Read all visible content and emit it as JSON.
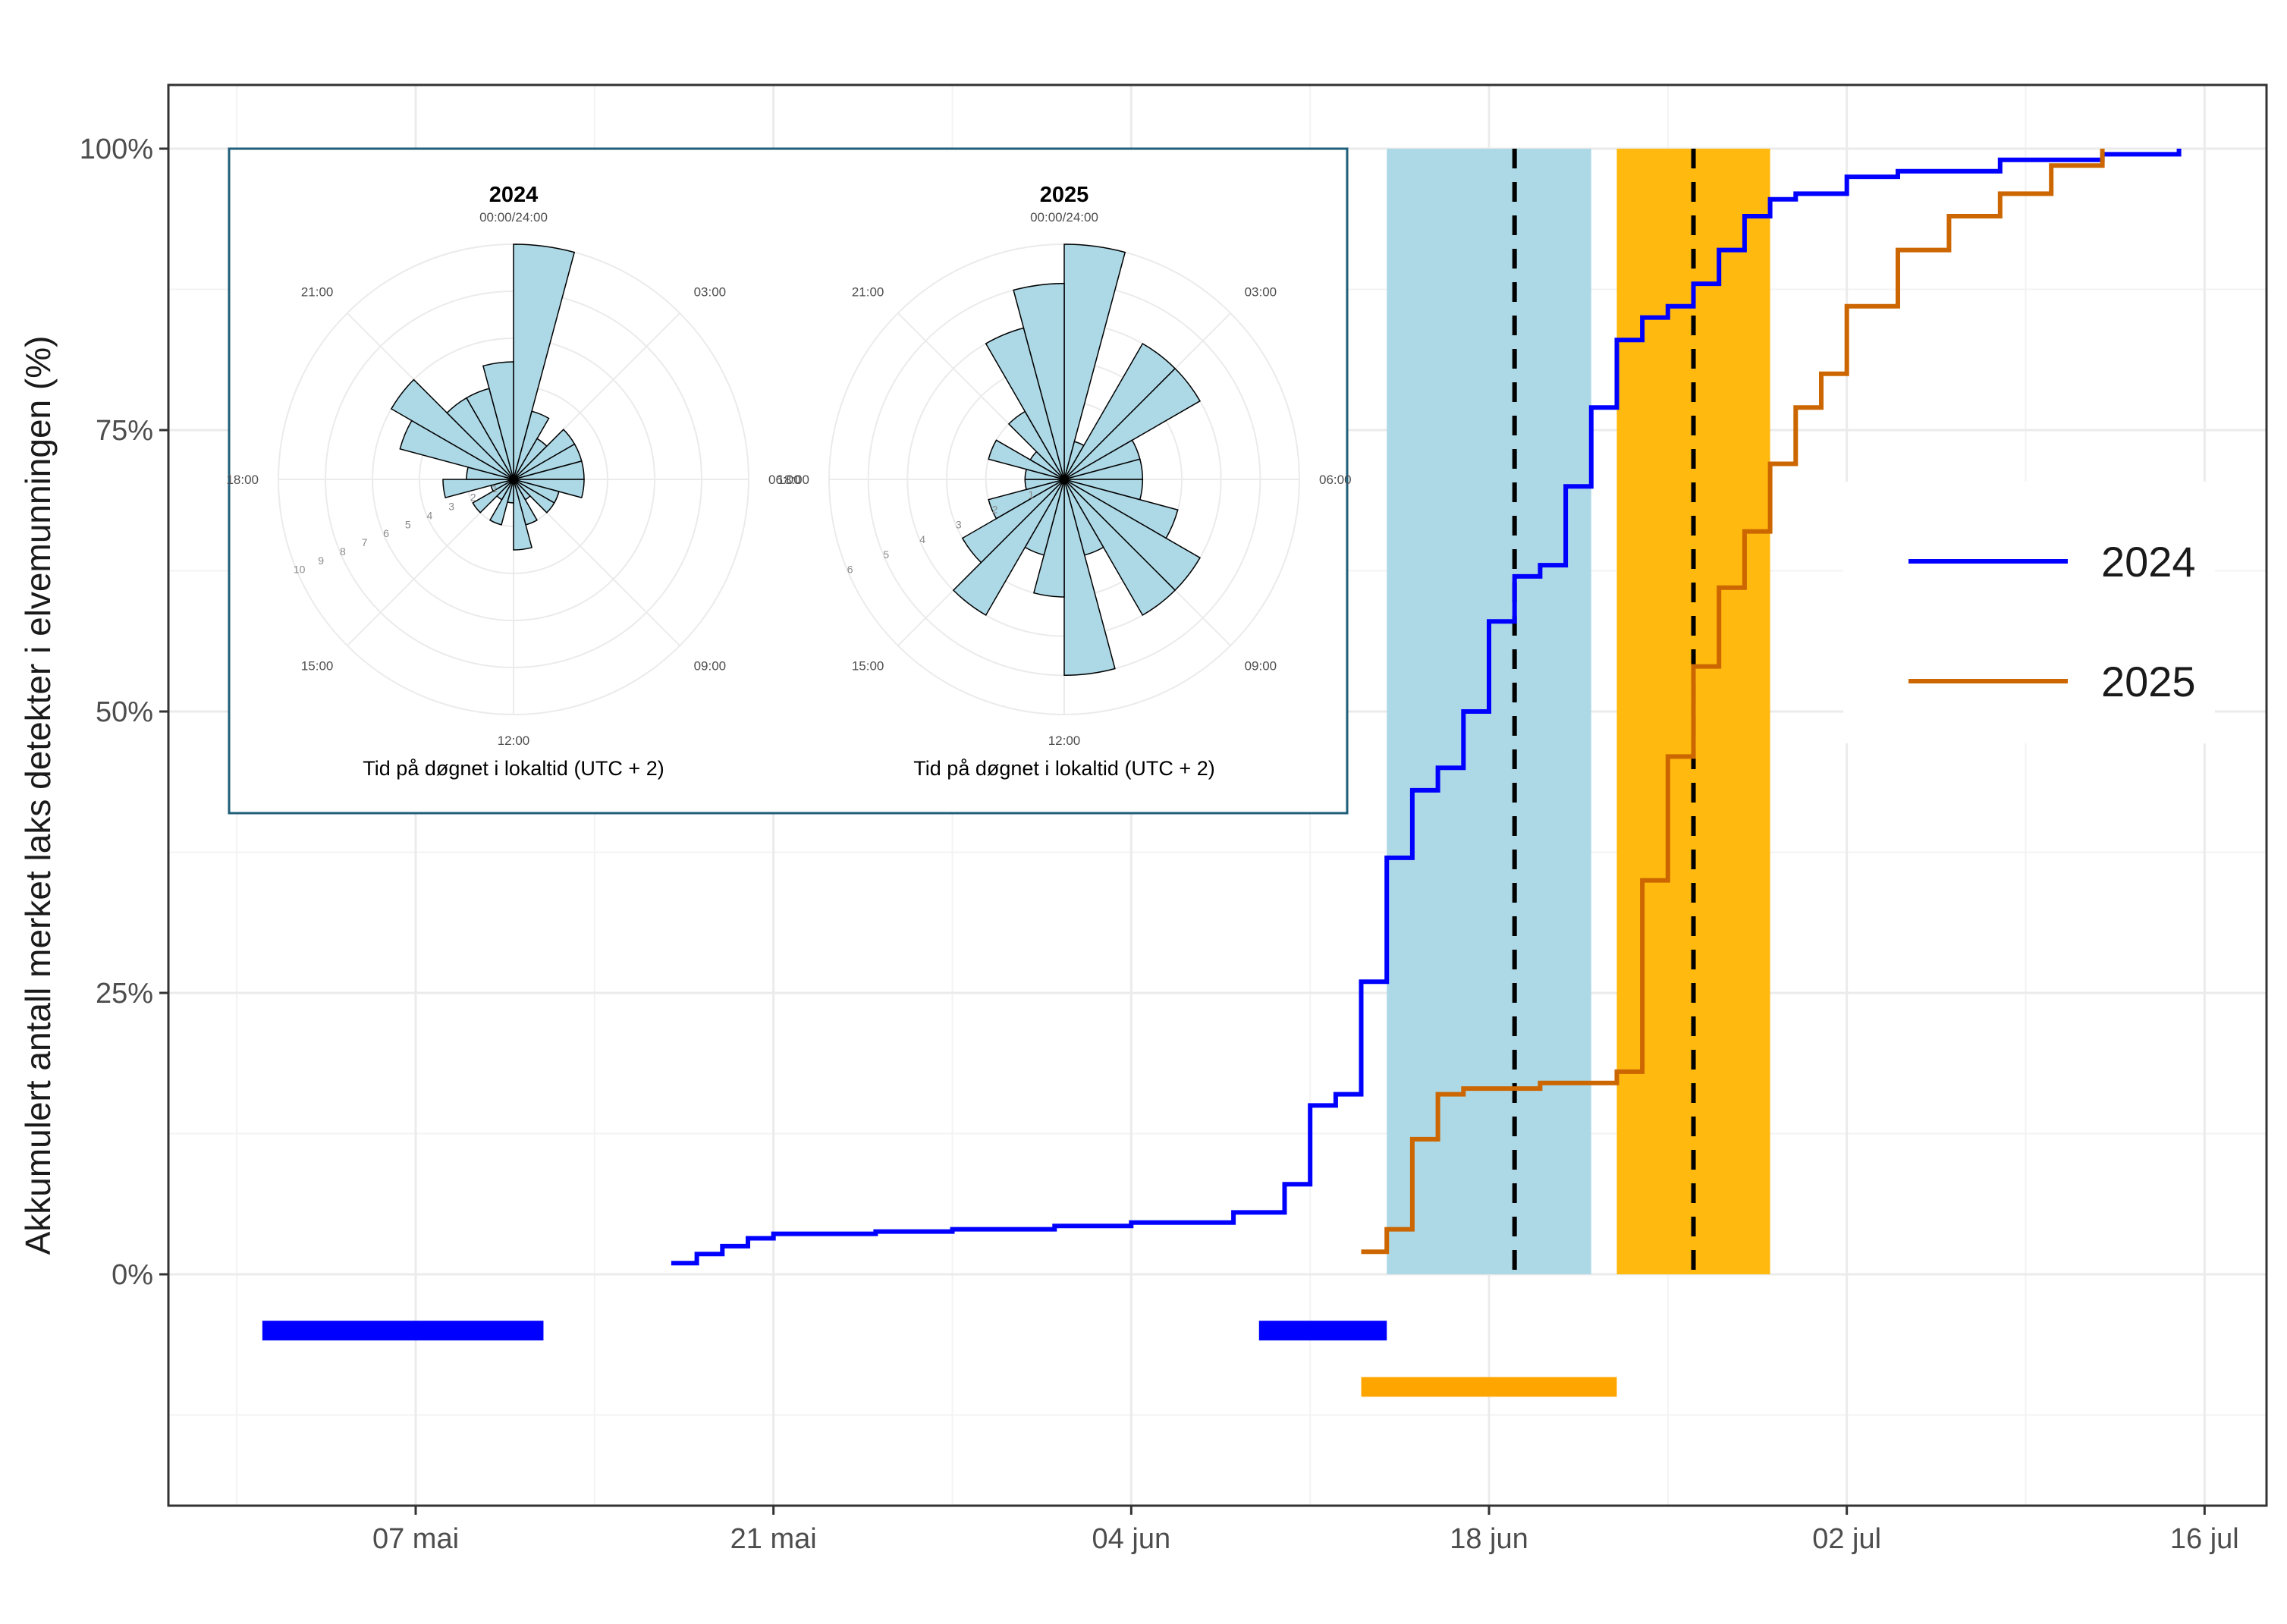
{
  "chart_data": {
    "type": "line",
    "title": "",
    "xlabel": "",
    "ylabel": "Akkumulert antall merket laks detekter i elvemunningen (%)",
    "x_ticks": [
      "07 mai",
      "21 mai",
      "04 jun",
      "18 jun",
      "02 jul",
      "16 jul"
    ],
    "y_ticks": [
      "0%",
      "25%",
      "50%",
      "75%",
      "100%"
    ],
    "ylim": [
      -21,
      106
    ],
    "grid": true,
    "legend_position": "right",
    "series": [
      {
        "name": "2024",
        "color": "#0000ff",
        "x": [
          "2024-05-17",
          "2024-05-18",
          "2024-05-19",
          "2024-05-20",
          "2024-05-21",
          "2024-05-25",
          "2024-05-28",
          "2024-06-01",
          "2024-06-04",
          "2024-06-08",
          "2024-06-10",
          "2024-06-11",
          "2024-06-11",
          "2024-06-12",
          "2024-06-13",
          "2024-06-13",
          "2024-06-14",
          "2024-06-15",
          "2024-06-16",
          "2024-06-17",
          "2024-06-18",
          "2024-06-19",
          "2024-06-20",
          "2024-06-21",
          "2024-06-22",
          "2024-06-23",
          "2024-06-24",
          "2024-06-25",
          "2024-06-26",
          "2024-06-27",
          "2024-06-28",
          "2024-06-29",
          "2024-06-30",
          "2024-07-02",
          "2024-07-04",
          "2024-07-08",
          "2024-07-12",
          "2024-07-15"
        ],
        "y": [
          1.0,
          1.8,
          2.5,
          3.2,
          3.6,
          3.8,
          4.0,
          4.3,
          4.6,
          5.5,
          8.0,
          10.0,
          15.0,
          16.0,
          18.0,
          26.0,
          37.0,
          43.0,
          45.0,
          50.0,
          58.0,
          62.0,
          63.0,
          70.0,
          77.0,
          83.0,
          85.0,
          86.0,
          88.0,
          91.0,
          94.0,
          95.5,
          96.0,
          97.5,
          98.0,
          99.0,
          99.5,
          100.0
        ]
      },
      {
        "name": "2025",
        "color": "#cc6600",
        "x": [
          "2025-06-13",
          "2025-06-14",
          "2025-06-15",
          "2025-06-16",
          "2025-06-17",
          "2025-06-20",
          "2025-06-23",
          "2025-06-24",
          "2025-06-25",
          "2025-06-26",
          "2025-06-27",
          "2025-06-28",
          "2025-06-29",
          "2025-06-30",
          "2025-07-01",
          "2025-07-02",
          "2025-07-04",
          "2025-07-06",
          "2025-07-08",
          "2025-07-10",
          "2025-07-12"
        ],
        "y": [
          2.0,
          4.0,
          12.0,
          16.0,
          16.5,
          17.0,
          18.0,
          35.0,
          46.0,
          54.0,
          61.0,
          66.0,
          72.0,
          77.0,
          80.0,
          86.0,
          91.0,
          94.0,
          96.0,
          98.5,
          100.0
        ]
      }
    ],
    "shaded_periods": [
      {
        "color": "#add8e6",
        "start": "2024-06-14",
        "end": "2024-06-22"
      },
      {
        "color": "#ffb90f",
        "start": "2025-06-23",
        "end": "2025-06-29"
      }
    ],
    "reference_lines": [
      {
        "x": "2024-06-19",
        "style": "dashed",
        "color": "#000000"
      },
      {
        "x": "2025-06-26",
        "style": "dashed",
        "color": "#000000"
      }
    ],
    "bottom_bars": [
      {
        "color": "#0000ff",
        "start": "2024-05-01",
        "end": "2024-05-12",
        "y": -5
      },
      {
        "color": "#0000ff",
        "start": "2024-06-09",
        "end": "2024-06-14",
        "y": -5
      },
      {
        "color": "#ffa500",
        "start": "2025-06-13",
        "end": "2025-06-23",
        "y": -10
      }
    ],
    "inset": {
      "type": "polar_bar",
      "angle_labels": [
        "00:00/24:00",
        "03:00",
        "06:00",
        "09:00",
        "12:00",
        "15:00",
        "18:00",
        "21:00"
      ],
      "xlabel": "Tid på døgnet i lokaltid (UTC + 2)",
      "panels": [
        {
          "title": "2024",
          "radial_labels": [
            "1",
            "2",
            "3",
            "4",
            "5",
            "6",
            "7",
            "8",
            "9",
            "10"
          ],
          "rmax": 10,
          "hourly_counts": [
            10,
            3,
            2,
            3,
            3,
            3,
            3,
            2,
            2,
            1,
            2,
            3,
            1,
            2,
            1,
            2,
            1,
            3,
            2,
            5,
            6,
            4,
            4,
            5
          ]
        },
        {
          "title": "2025",
          "radial_labels": [
            "1",
            "2",
            "3",
            "4",
            "5",
            "6"
          ],
          "rmax": 6,
          "hourly_counts": [
            6,
            1,
            4,
            4,
            2,
            2,
            2,
            3,
            4,
            4,
            2,
            5,
            3,
            2,
            4,
            3,
            2,
            1,
            1,
            2,
            1,
            2,
            4,
            5
          ]
        }
      ]
    }
  }
}
